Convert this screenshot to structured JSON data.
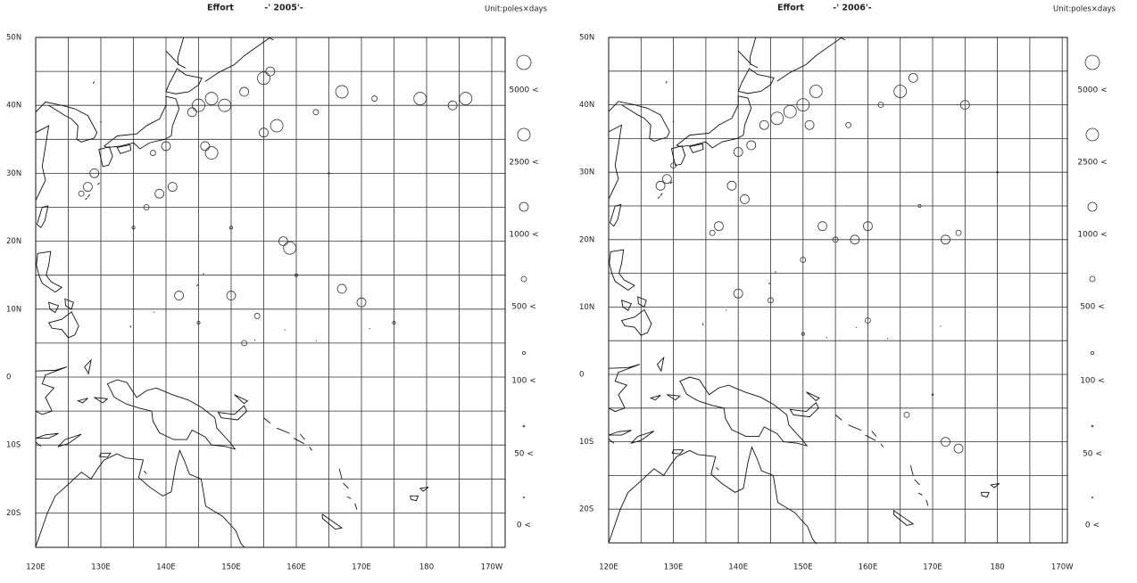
{
  "panels": [
    {
      "title": "Effort",
      "period": "-' 2005'-",
      "unit": "Unit:poles×days",
      "lat_labels": [
        "50N",
        "40N",
        "30N",
        "20N",
        "10N",
        "0",
        "10S",
        "20S"
      ],
      "lon_labels": [
        "120E",
        "130E",
        "140E",
        "150E",
        "160E",
        "170E",
        "180",
        "170W"
      ],
      "legend": [
        "5000 <",
        "2500 <",
        "1000 <",
        "500 <",
        "100 <",
        "50 <",
        "0 <"
      ],
      "bubbles": [
        [
          145,
          40,
          1
        ],
        [
          147,
          41,
          1
        ],
        [
          144,
          39,
          2
        ],
        [
          149,
          40,
          1
        ],
        [
          152,
          42,
          2
        ],
        [
          155,
          44,
          1
        ],
        [
          156,
          45,
          2
        ],
        [
          157,
          37,
          1
        ],
        [
          155,
          36,
          2
        ],
        [
          146,
          34,
          2
        ],
        [
          147,
          33,
          1
        ],
        [
          140,
          34,
          2
        ],
        [
          138,
          33,
          3
        ],
        [
          129,
          30,
          2
        ],
        [
          128,
          28,
          2
        ],
        [
          127,
          27,
          3
        ],
        [
          139,
          27,
          2
        ],
        [
          141,
          28,
          2
        ],
        [
          137,
          25,
          3
        ],
        [
          159,
          19,
          1
        ],
        [
          158,
          20,
          2
        ],
        [
          142,
          12,
          2
        ],
        [
          150,
          12,
          2
        ],
        [
          154,
          9,
          3
        ],
        [
          167,
          13,
          2
        ],
        [
          170,
          11,
          2
        ],
        [
          152,
          5,
          3
        ],
        [
          167,
          42,
          1
        ],
        [
          179,
          41,
          1
        ],
        [
          186,
          41,
          1
        ],
        [
          184,
          40,
          2
        ],
        [
          163,
          39,
          3
        ],
        [
          172,
          41,
          3
        ],
        [
          135,
          22,
          4
        ],
        [
          150,
          22,
          4
        ],
        [
          160,
          15,
          4
        ],
        [
          175,
          8,
          4
        ],
        [
          145,
          8,
          4
        ],
        [
          165,
          30,
          5
        ],
        [
          170,
          20,
          6
        ]
      ]
    },
    {
      "title": "Effort",
      "period": "-' 2006'-",
      "unit": "Unit:poles×days",
      "lat_labels": [
        "50N",
        "40N",
        "30N",
        "20N",
        "10N",
        "0",
        "10S",
        "20S"
      ],
      "lon_labels": [
        "120E",
        "130E",
        "140E",
        "150E",
        "160E",
        "170E",
        "180",
        "170W"
      ],
      "legend": [
        "5000 <",
        "2500 <",
        "1000 <",
        "500 <",
        "100 <",
        "50 <",
        "0 <"
      ],
      "bubbles": [
        [
          146,
          38,
          1
        ],
        [
          148,
          39,
          1
        ],
        [
          150,
          40,
          1
        ],
        [
          152,
          42,
          1
        ],
        [
          151,
          37,
          2
        ],
        [
          144,
          37,
          2
        ],
        [
          142,
          34,
          2
        ],
        [
          140,
          33,
          2
        ],
        [
          129,
          29,
          2
        ],
        [
          128,
          28,
          2
        ],
        [
          130,
          31,
          3
        ],
        [
          139,
          28,
          2
        ],
        [
          141,
          26,
          2
        ],
        [
          137,
          22,
          2
        ],
        [
          136,
          21,
          3
        ],
        [
          140,
          12,
          2
        ],
        [
          153,
          22,
          2
        ],
        [
          158,
          20,
          2
        ],
        [
          160,
          22,
          2
        ],
        [
          155,
          20,
          3
        ],
        [
          172,
          20,
          2
        ],
        [
          174,
          21,
          3
        ],
        [
          150,
          17,
          3
        ],
        [
          160,
          8,
          3
        ],
        [
          172,
          -10,
          2
        ],
        [
          174,
          -11,
          2
        ],
        [
          166,
          -6,
          3
        ],
        [
          165,
          42,
          1
        ],
        [
          167,
          44,
          2
        ],
        [
          175,
          40,
          2
        ],
        [
          162,
          40,
          3
        ],
        [
          157,
          37,
          3
        ],
        [
          145,
          11,
          3
        ],
        [
          150,
          6,
          4
        ],
        [
          170,
          -3,
          5
        ],
        [
          180,
          30,
          5
        ],
        [
          168,
          25,
          4
        ]
      ]
    }
  ]
}
